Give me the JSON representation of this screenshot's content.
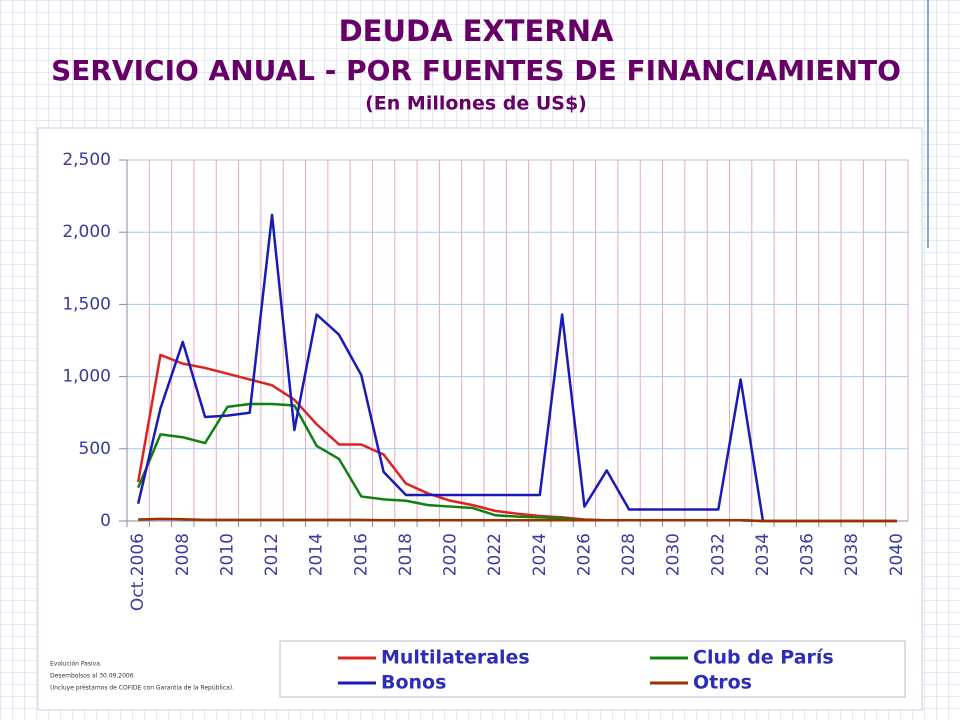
{
  "chart_data": {
    "type": "line",
    "title": "DEUDA EXTERNA",
    "subtitle": "SERVICIO ANUAL - POR FUENTES DE FINANCIAMIENTO",
    "units": "(En Millones de US$)",
    "notes": [
      "Evolución Pasiva.",
      "Desembolsos al 30.09.2006",
      "(Incluye préstamos de COFIDE con Garantía de la República)."
    ],
    "categories": [
      "Oct.2006",
      null,
      "2008",
      null,
      "2010",
      null,
      "2012",
      null,
      "2014",
      null,
      "2016",
      null,
      "2018",
      null,
      "2020",
      null,
      "2022",
      null,
      "2024",
      null,
      "2026",
      null,
      "2028",
      null,
      "2030",
      null,
      "2032",
      null,
      "2034",
      null,
      "2036",
      null,
      "2038",
      null,
      "2040"
    ],
    "series": [
      {
        "name": "Multilaterales",
        "color": "#dd2222",
        "values": [
          270,
          1150,
          1090,
          1060,
          1020,
          980,
          940,
          840,
          670,
          530,
          530,
          460,
          260,
          190,
          140,
          110,
          70,
          50,
          35,
          25,
          10,
          5,
          5,
          5,
          5,
          5,
          5,
          5,
          0,
          0,
          0,
          0,
          0,
          0,
          0
        ]
      },
      {
        "name": "Club de París",
        "color": "#108010",
        "values": [
          230,
          600,
          580,
          540,
          790,
          810,
          810,
          800,
          520,
          430,
          170,
          150,
          140,
          110,
          100,
          90,
          40,
          30,
          25,
          20,
          5,
          5,
          5,
          5,
          5,
          5,
          5,
          5,
          0,
          0,
          0,
          0,
          0,
          0,
          0
        ]
      },
      {
        "name": "Bonos",
        "color": "#1a1ab8",
        "values": [
          120,
          780,
          1240,
          720,
          730,
          750,
          2120,
          630,
          1430,
          1290,
          1010,
          340,
          180,
          180,
          180,
          180,
          180,
          180,
          180,
          1430,
          100,
          350,
          80,
          80,
          80,
          80,
          80,
          980,
          0,
          null,
          null,
          null,
          null,
          null,
          null
        ]
      },
      {
        "name": "Otros",
        "color": "#993300",
        "values": [
          10,
          15,
          12,
          8,
          8,
          8,
          8,
          8,
          8,
          8,
          8,
          5,
          5,
          5,
          5,
          5,
          5,
          5,
          5,
          5,
          5,
          5,
          5,
          5,
          5,
          5,
          5,
          5,
          0,
          0,
          0,
          0,
          0,
          0,
          0
        ]
      }
    ],
    "ylim": [
      0,
      2500
    ],
    "yticks": [
      0,
      500,
      {
        "value": 1000,
        "label": "1,000"
      },
      {
        "value": 1500,
        "label": "1,500"
      },
      {
        "value": 2000,
        "label": "2,000"
      },
      {
        "value": 2500,
        "label": "2,500"
      }
    ],
    "grid": true,
    "legend": "bottom"
  }
}
